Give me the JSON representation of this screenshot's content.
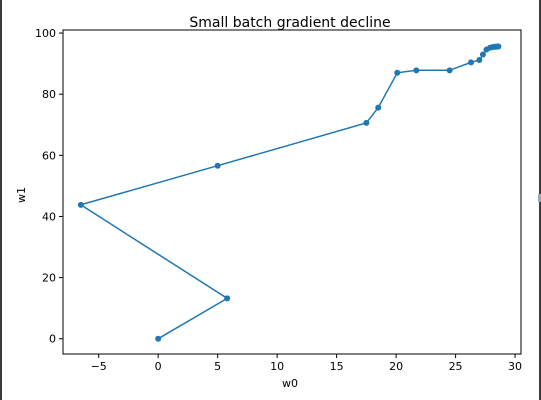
{
  "chart_data": {
    "type": "line",
    "title": "Small batch gradient decline",
    "xlabel": "w0",
    "ylabel": "w1",
    "xlim": [
      -8,
      30.5
    ],
    "ylim": [
      -5,
      101
    ],
    "xticks": [
      -5,
      0,
      5,
      10,
      15,
      20,
      25,
      30
    ],
    "xtick_labels": [
      "−5",
      "0",
      "5",
      "10",
      "15",
      "20",
      "25",
      "30"
    ],
    "yticks": [
      0,
      20,
      40,
      60,
      80,
      100
    ],
    "ytick_labels": [
      "0",
      "20",
      "40",
      "60",
      "80",
      "100"
    ],
    "grid": false,
    "legend": "none",
    "series": [
      {
        "color": "#1f77b4",
        "marker": "circle",
        "x": [
          0,
          5.8,
          -6.5,
          5.0,
          17.5,
          18.5,
          20.1,
          21.7,
          24.5,
          26.3,
          27.0,
          27.3,
          27.6,
          27.9,
          28.1,
          28.3,
          28.4,
          28.5,
          28.6
        ],
        "y": [
          0,
          13.2,
          43.8,
          56.6,
          70.6,
          75.6,
          87.0,
          87.8,
          87.8,
          90.4,
          91.2,
          93.0,
          94.6,
          95.2,
          95.4,
          95.5,
          95.5,
          95.6,
          95.6
        ]
      }
    ]
  }
}
